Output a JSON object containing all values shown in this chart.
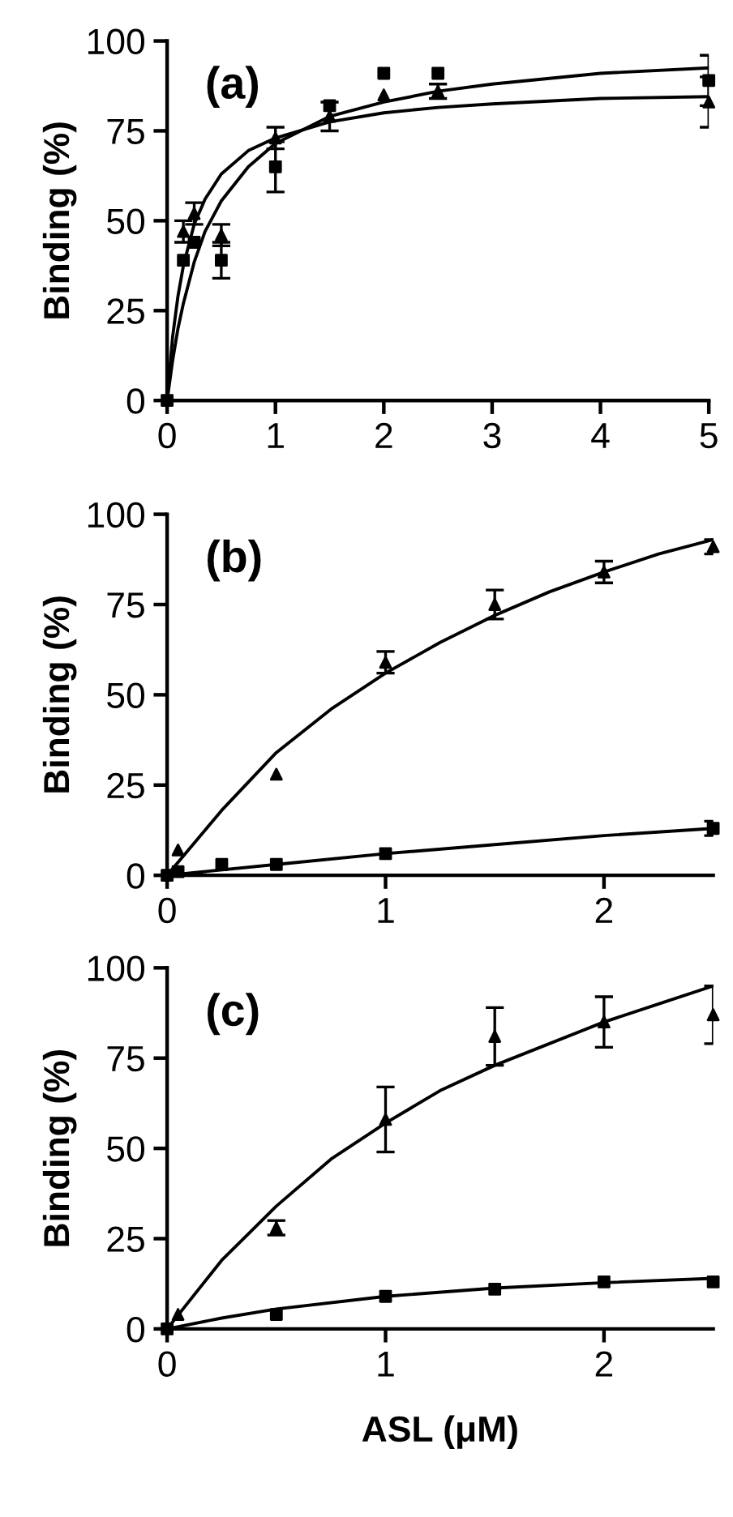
{
  "chart_data": [
    {
      "type": "scatter",
      "ylabel": "Binding (%)",
      "annotations": [
        "(a)"
      ],
      "xlim": [
        0,
        5
      ],
      "xticks": [
        0,
        1,
        2,
        3,
        4,
        5
      ],
      "ylim": [
        0,
        100
      ],
      "yticks": [
        0,
        25,
        50,
        75,
        100
      ],
      "grid": false,
      "legend": false,
      "series": [
        {
          "marker": "square",
          "color": "#000000",
          "x": [
            0,
            0.15,
            0.25,
            0.5,
            1,
            1.5,
            2,
            2.5,
            5
          ],
          "values": [
            0,
            39,
            44,
            39,
            65,
            82,
            91,
            91,
            89
          ],
          "errors": [
            null,
            null,
            null,
            5,
            7,
            null,
            null,
            null,
            7
          ]
        },
        {
          "marker": "triangle",
          "color": "#000000",
          "x": [
            0.15,
            0.25,
            0.5,
            1,
            1.5,
            2,
            2.5,
            5
          ],
          "values": [
            47,
            52,
            46,
            73,
            79,
            85,
            86,
            83
          ],
          "errors": [
            3,
            3,
            3,
            3,
            4,
            null,
            2,
            7
          ]
        },
        {
          "type": "line",
          "marker": "none",
          "line_style": "solid",
          "color": "#000000",
          "x": [
            0,
            0.05,
            0.1,
            0.15,
            0.25,
            0.35,
            0.5,
            0.75,
            1,
            1.5,
            2,
            2.5,
            3,
            4,
            5
          ],
          "values": [
            0,
            11,
            20,
            27,
            38.5,
            47,
            55.5,
            65,
            71.5,
            79,
            83,
            86,
            88,
            91,
            92.5
          ]
        },
        {
          "type": "line",
          "marker": "none",
          "line_style": "solid",
          "color": "#000000",
          "x": [
            0,
            0.05,
            0.1,
            0.15,
            0.25,
            0.35,
            0.5,
            0.75,
            1,
            1.5,
            2,
            2.5,
            3,
            4,
            5
          ],
          "values": [
            0,
            17.5,
            29,
            37.5,
            49,
            56,
            63,
            69.5,
            73,
            77.5,
            80,
            81.5,
            82.5,
            84,
            84.5
          ]
        }
      ]
    },
    {
      "type": "scatter",
      "ylabel": "Binding (%)",
      "annotations": [
        "(b)"
      ],
      "xlim": [
        0,
        2.5
      ],
      "xticks": [
        0,
        1,
        2
      ],
      "ylim": [
        0,
        100
      ],
      "yticks": [
        0,
        25,
        50,
        75,
        100
      ],
      "grid": false,
      "legend": false,
      "series": [
        {
          "marker": "triangle",
          "color": "#000000",
          "x": [
            0.05,
            0.5,
            1,
            1.5,
            2,
            2.5
          ],
          "values": [
            7,
            28,
            59,
            75,
            84,
            91
          ],
          "errors": [
            null,
            null,
            3,
            4,
            3,
            2
          ]
        },
        {
          "marker": "square",
          "color": "#000000",
          "x": [
            0,
            0.05,
            0.25,
            0.5,
            1,
            2.5
          ],
          "values": [
            0,
            1,
            3,
            3,
            6,
            13
          ],
          "errors": [
            null,
            null,
            null,
            null,
            null,
            2
          ]
        },
        {
          "type": "line",
          "marker": "none",
          "line_style": "solid",
          "color": "#000000",
          "x": [
            0,
            0.25,
            0.5,
            0.75,
            1,
            1.25,
            1.5,
            1.75,
            2,
            2.25,
            2.5
          ],
          "values": [
            0,
            18,
            34,
            46,
            56,
            64.5,
            72,
            78.5,
            84,
            89,
            93
          ]
        },
        {
          "type": "line",
          "marker": "none",
          "line_style": "solid",
          "color": "#000000",
          "x": [
            0,
            0.5,
            1,
            1.5,
            2,
            2.5
          ],
          "values": [
            0,
            3,
            6,
            8.5,
            11,
            13
          ]
        }
      ]
    },
    {
      "type": "scatter",
      "ylabel": "Binding (%)",
      "xlabel": "ASL (μM)",
      "annotations": [
        "(c)"
      ],
      "xlim": [
        0,
        2.5
      ],
      "xticks": [
        0,
        1,
        2
      ],
      "ylim": [
        0,
        100
      ],
      "yticks": [
        0,
        25,
        50,
        75,
        100
      ],
      "grid": false,
      "legend": false,
      "series": [
        {
          "marker": "triangle",
          "color": "#000000",
          "x": [
            0.05,
            0.5,
            1,
            1.5,
            2,
            2.5
          ],
          "values": [
            4,
            28,
            58,
            81,
            85,
            87
          ],
          "errors": [
            null,
            2,
            9,
            8,
            7,
            8
          ]
        },
        {
          "marker": "square",
          "color": "#000000",
          "x": [
            0,
            0.5,
            1,
            1.5,
            2,
            2.5
          ],
          "values": [
            0,
            4,
            9,
            11,
            13,
            13
          ]
        },
        {
          "type": "line",
          "marker": "none",
          "line_style": "solid",
          "color": "#000000",
          "x": [
            0,
            0.25,
            0.5,
            0.75,
            1,
            1.25,
            1.5,
            1.75,
            2,
            2.25,
            2.5
          ],
          "values": [
            0,
            19,
            34,
            47,
            57,
            66,
            73,
            79,
            85,
            90,
            95
          ]
        },
        {
          "type": "line",
          "marker": "none",
          "line_style": "solid",
          "color": "#000000",
          "x": [
            0,
            0.25,
            0.5,
            1,
            1.5,
            2,
            2.5
          ],
          "values": [
            0,
            3,
            5.5,
            9,
            11.3,
            12.8,
            14
          ]
        }
      ]
    }
  ]
}
